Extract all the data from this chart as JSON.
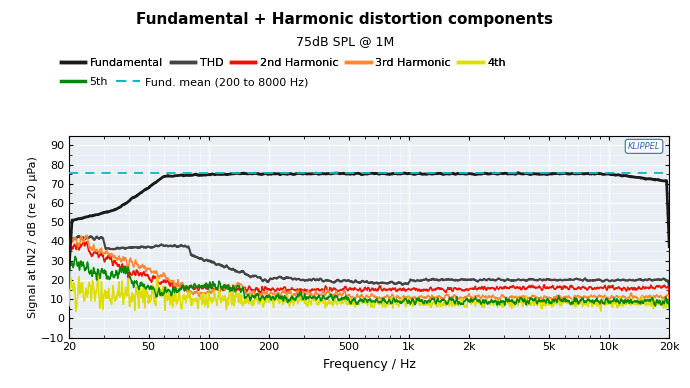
{
  "title": "Fundamental + Harmonic distortion components",
  "subtitle": "75dB SPL @ 1M",
  "xlabel": "Frequency / Hz",
  "ylabel": "Signal at IN2 / dB (re 20 μPa)",
  "ylim": [
    -10,
    95
  ],
  "yticks": [
    -10,
    0,
    10,
    20,
    30,
    40,
    50,
    60,
    70,
    80,
    90
  ],
  "freq_min": 20,
  "freq_max": 20000,
  "fund_mean": 75.5,
  "colors": {
    "fundamental": "#1a1a1a",
    "thd": "#444444",
    "harmonic2": "#ee1100",
    "harmonic3": "#ff8833",
    "harmonic4": "#dddd00",
    "harmonic5": "#008800",
    "fund_mean": "#00bbcc"
  },
  "bg_color": "#e8eef4",
  "grid_color": "#ffffff",
  "klippel_color": "#3366aa",
  "legend_row1": [
    "Fundamental",
    "THD",
    "2nd Harmonic",
    "3rd Harmonic",
    "4th"
  ],
  "legend_row2": [
    "5th",
    "Fund. mean (200 to 8000 Hz)"
  ]
}
